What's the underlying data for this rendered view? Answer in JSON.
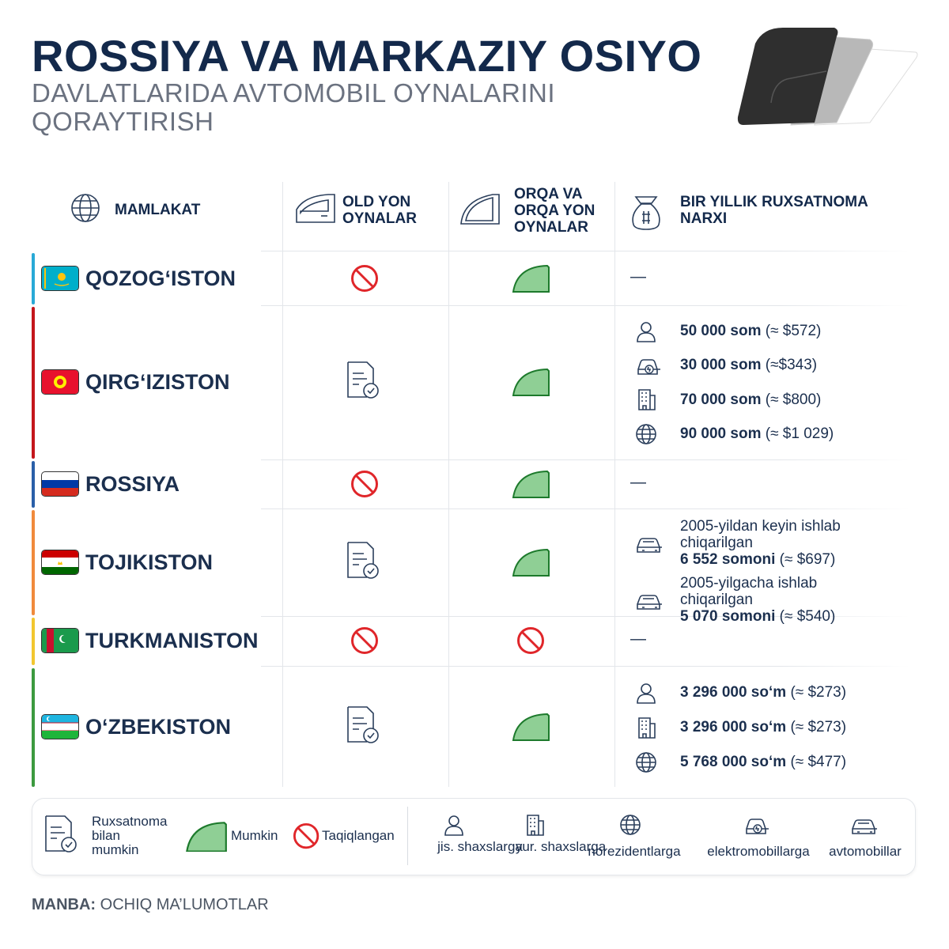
{
  "header": {
    "title": "ROSSIYA VA MARKAZIY OSIYO",
    "subtitle": "DAVLATLARIDA AVTOMOBIL OYNALARINI QORAYTIRISH"
  },
  "table": {
    "columns": [
      "MAMLAKAT",
      "OLD YON OYNALAR",
      "ORQA VA ORQA YON OYNALAR",
      "BIR YILLIK RUXSATNOMA NARXI"
    ],
    "rows": [
      {
        "country": "QOZOG‘ISTON",
        "front": "Taqiqlangan",
        "rear": "Mumkin",
        "price": "—"
      },
      {
        "country": "QIRG‘IZISTON",
        "front": "Ruxsatnoma bilan mumkin",
        "rear": "Mumkin",
        "prices": [
          {
            "amount": "50 000 som",
            "approx": "(≈ $572)",
            "for": "jis. shaxslarga"
          },
          {
            "amount": "30 000 som",
            "approx": "(≈$343)",
            "for": "elektromobillarga"
          },
          {
            "amount": "70 000 som",
            "approx": "(≈ $800)",
            "for": "yur. shaxslarga"
          },
          {
            "amount": "90 000 som",
            "approx": "(≈ $1 029)",
            "for": "norezidentlarga"
          }
        ]
      },
      {
        "country": "ROSSIYA",
        "front": "Taqiqlangan",
        "rear": "Mumkin",
        "price": "—"
      },
      {
        "country": "TOJIKISTON",
        "front": "Ruxsatnoma bilan mumkin",
        "rear": "Mumkin",
        "prices": [
          {
            "note": "2005-yildan keyin ishlab chiqarilgan",
            "amount": "6 552 somoni",
            "approx": "(≈ $697)",
            "for": "avtomobillar"
          },
          {
            "note": "2005-yilgacha ishlab chiqarilgan",
            "amount": "5 070 somoni",
            "approx": "(≈ $540)",
            "for": "avtomobillar"
          }
        ]
      },
      {
        "country": "TURKMANISTON",
        "front": "Taqiqlangan",
        "rear": "Taqiqlangan",
        "price": "—"
      },
      {
        "country": "O‘ZBEKISTON",
        "front": "Ruxsatnoma bilan mumkin",
        "rear": "Mumkin",
        "prices": [
          {
            "amount": "3 296 000 so‘m",
            "approx": " (≈ $273)",
            "for": "jis. shaxslarga"
          },
          {
            "amount": "3 296 000 so‘m",
            "approx": " (≈ $273)",
            "for": "yur. shaxslarga"
          },
          {
            "amount": "5 768 000 so‘m",
            "approx": " (≈ $477)",
            "for": "norezidentlarga"
          }
        ]
      }
    ]
  },
  "legend": {
    "status": [
      "Ruxsatnoma bilan mumkin",
      "Mumkin",
      "Taqiqlangan"
    ],
    "recipients": [
      "jis. shaxslarga",
      "yur. shaxslarga",
      "norezidentlarga",
      "elektromobillarga",
      "avtomobillar"
    ]
  },
  "source": {
    "label": "MANBA:",
    "text": "OCHIQ MA’LUMOTLAR"
  }
}
